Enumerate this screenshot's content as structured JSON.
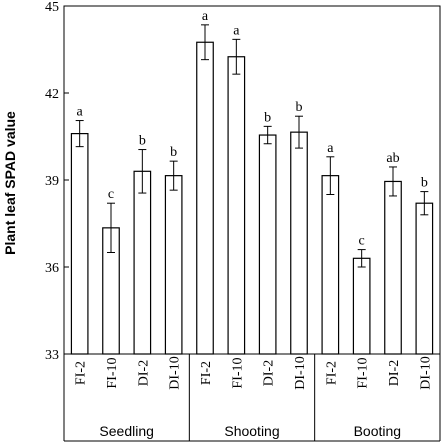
{
  "chart_data": {
    "type": "bar",
    "ylabel": "Plant leaf SPAD value",
    "ylim": [
      33,
      45
    ],
    "yticks": [
      33,
      36,
      39,
      42,
      45
    ],
    "grid": false,
    "legend": "none",
    "groups": [
      {
        "name": "Seedling",
        "categories": [
          "FI-2",
          "FI-10",
          "DI-2",
          "DI-10"
        ],
        "values": [
          40.6,
          37.35,
          39.3,
          39.15
        ],
        "errors": [
          0.45,
          0.85,
          0.75,
          0.5
        ],
        "letters": [
          "a",
          "c",
          "b",
          "b"
        ]
      },
      {
        "name": "Shooting",
        "categories": [
          "FI-2",
          "FI-10",
          "DI-2",
          "DI-10"
        ],
        "values": [
          43.75,
          43.25,
          40.55,
          40.65
        ],
        "errors": [
          0.6,
          0.6,
          0.3,
          0.55
        ],
        "letters": [
          "a",
          "a",
          "b",
          "b"
        ]
      },
      {
        "name": "Booting",
        "categories": [
          "FI-2",
          "FI-10",
          "DI-2",
          "DI-10"
        ],
        "values": [
          39.15,
          36.3,
          38.95,
          38.2
        ],
        "errors": [
          0.65,
          0.3,
          0.5,
          0.4
        ],
        "letters": [
          "a",
          "c",
          "ab",
          "b"
        ]
      }
    ]
  },
  "style": {
    "bar_fill": "#ffffff",
    "stroke": "#000000",
    "text": "#000000"
  }
}
